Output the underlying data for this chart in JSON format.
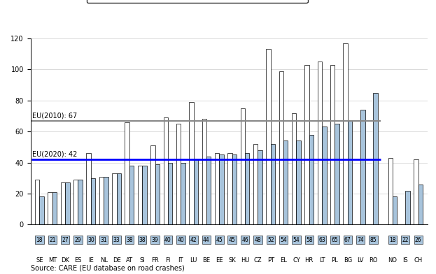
{
  "countries_eu": [
    "SE",
    "MT",
    "DK",
    "ES",
    "IE",
    "NL",
    "DE",
    "AT",
    "SI",
    "FR",
    "FI",
    "IT",
    "LU",
    "BE",
    "EE",
    "SK",
    "HU",
    "CZ",
    "PT",
    "EL",
    "CY",
    "HR",
    "LT",
    "PL",
    "BG",
    "LV",
    "RO"
  ],
  "val2010_eu": [
    29,
    21,
    27,
    29,
    46,
    31,
    33,
    66,
    38,
    51,
    69,
    65,
    79,
    68,
    46,
    46,
    75,
    52,
    113,
    99,
    72,
    103,
    105,
    103,
    117,
    null,
    null
  ],
  "val2020_eu": [
    18,
    21,
    27,
    29,
    30,
    31,
    33,
    38,
    38,
    39,
    40,
    40,
    42,
    44,
    45,
    45,
    46,
    48,
    52,
    54,
    54,
    58,
    63,
    65,
    67,
    74,
    85
  ],
  "countries_non": [
    "NO",
    "IS",
    "CH"
  ],
  "val2010_non": [
    43,
    null,
    42
  ],
  "val2020_non": [
    18,
    22,
    26
  ],
  "eu2010_line": 67,
  "eu2020_line": 42,
  "bar_color_2010": "#ffffff",
  "bar_color_2020": "#a8c4dc",
  "bar_edgecolor": "#000000",
  "line2010_color": "#888888",
  "line2020_color": "#0000ff",
  "yticks": [
    0,
    20,
    40,
    60,
    80,
    100,
    120
  ],
  "source": "Source: CARE (EU database on road crashes)"
}
